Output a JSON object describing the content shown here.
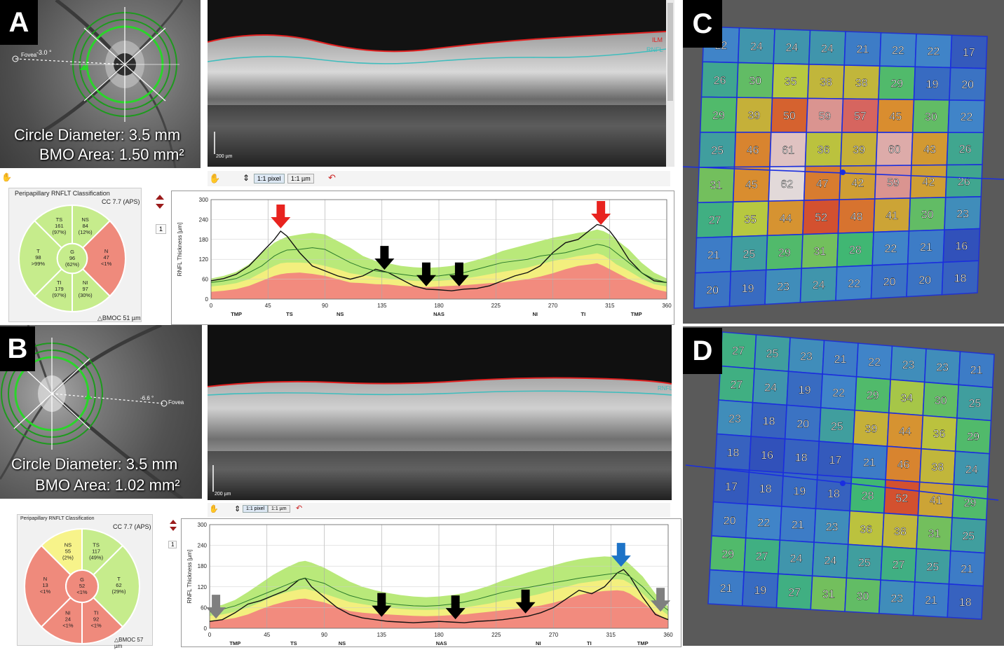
{
  "panels": {
    "A": {
      "label": "A",
      "fovea_label": "Fovea",
      "fovea_angle": "-3.0 °",
      "circle_diameter": "Circle Diameter: 3.5 mm",
      "bmo_area": "BMO Area: 1.50 mm²",
      "scale_bar": "200 µm",
      "layer_ilm": "ILM",
      "layer_rnfl": "RNFL",
      "toolbar_btn1": "1:1 pixel",
      "toolbar_btn2": "1:1 µm",
      "classification_title": "Peripapillary RNFLT Classification",
      "classification_cc": "CC 7.7 (APS)",
      "bmo_footer": "△BMOC 51 µm",
      "page_num": "1",
      "sectors": {
        "TS": {
          "name": "TS",
          "value": "161",
          "pct": "(97%)",
          "color": "#c6ec8c"
        },
        "NS": {
          "name": "NS",
          "value": "84",
          "pct": "(12%)",
          "color": "#c6ec8c"
        },
        "N": {
          "name": "N",
          "value": "47",
          "pct": "<1%",
          "color": "#ef8a7c"
        },
        "NI": {
          "name": "NI",
          "value": "97",
          "pct": "(30%)",
          "color": "#c6ec8c"
        },
        "TI": {
          "name": "TI",
          "value": "179",
          "pct": "(97%)",
          "color": "#c6ec8c"
        },
        "T": {
          "name": "T",
          "value": "98",
          "pct": ">99%",
          "color": "#c6ec8c"
        },
        "G": {
          "name": "G",
          "value": "96",
          "pct": "(62%)",
          "color": "#c6ec8c"
        }
      }
    },
    "B": {
      "label": "B",
      "fovea_label": "Fovea",
      "fovea_angle": "-6.6 °",
      "circle_diameter": "Circle Diameter: 3.5 mm",
      "bmo_area": "BMO Area: 1.02 mm²",
      "scale_bar": "200 µm",
      "layer_rnfl": "RNFL",
      "toolbar_btn1": "1:1 pixel",
      "toolbar_btn2": "1:1 µm",
      "classification_title": "Peripapillary RNFLT Classification",
      "classification_cc": "CC 7.7 (APS)",
      "bmo_footer": "△BMOC 57 µm",
      "page_num": "1",
      "sectors": {
        "NS": {
          "name": "NS",
          "value": "55",
          "pct": "(2%)",
          "color": "#f7f38a"
        },
        "TS": {
          "name": "TS",
          "value": "117",
          "pct": "(49%)",
          "color": "#c6ec8c"
        },
        "T": {
          "name": "T",
          "value": "62",
          "pct": "(29%)",
          "color": "#c6ec8c"
        },
        "TI": {
          "name": "TI",
          "value": "92",
          "pct": "<1%",
          "color": "#ef8a7c"
        },
        "NI": {
          "name": "NI",
          "value": "24",
          "pct": "<1%",
          "color": "#ef8a7c"
        },
        "N": {
          "name": "N",
          "value": "13",
          "pct": "<1%",
          "color": "#ef8a7c"
        },
        "G": {
          "name": "G",
          "value": "52",
          "pct": "<1%",
          "color": "#ef8a7c"
        }
      }
    },
    "C": {
      "label": "C"
    },
    "D": {
      "label": "D"
    }
  },
  "chart_data": [
    {
      "type": "line",
      "panel": "A",
      "ylabel": "RNFL Thickness [µm]",
      "xlim": [
        0,
        360
      ],
      "ylim": [
        0,
        300
      ],
      "x_ticks": [
        0,
        45,
        90,
        135,
        180,
        225,
        270,
        315,
        360
      ],
      "y_ticks": [
        0,
        60,
        120,
        180,
        240,
        300
      ],
      "sector_labels": [
        "TMP",
        "TS",
        "NS",
        "NAS",
        "NI",
        "TI",
        "TMP"
      ],
      "sector_label_x": [
        10,
        31,
        51,
        90,
        128,
        147,
        168
      ],
      "arrows": [
        {
          "angle": 55,
          "color": "#e8231f"
        },
        {
          "angle": 137,
          "color": "#000000"
        },
        {
          "angle": 170,
          "color": "#000000"
        },
        {
          "angle": 196,
          "color": "#000000"
        },
        {
          "angle": 308,
          "color": "#e8231f"
        }
      ],
      "x": [
        0,
        10,
        20,
        30,
        40,
        50,
        55,
        60,
        70,
        80,
        90,
        100,
        110,
        120,
        130,
        140,
        150,
        160,
        170,
        180,
        190,
        200,
        210,
        220,
        230,
        240,
        250,
        260,
        270,
        280,
        290,
        300,
        305,
        310,
        315,
        320,
        330,
        340,
        350,
        360
      ],
      "series": [
        {
          "name": "patient",
          "values": [
            55,
            62,
            75,
            100,
            140,
            180,
            205,
            190,
            140,
            100,
            85,
            70,
            60,
            70,
            90,
            80,
            60,
            40,
            30,
            28,
            25,
            30,
            32,
            40,
            55,
            70,
            80,
            100,
            140,
            170,
            180,
            210,
            225,
            220,
            205,
            180,
            120,
            80,
            55,
            50
          ]
        },
        {
          "name": "normal_mean",
          "values": [
            50,
            55,
            62,
            80,
            100,
            130,
            140,
            148,
            150,
            155,
            150,
            130,
            110,
            95,
            85,
            80,
            75,
            70,
            68,
            70,
            75,
            80,
            90,
            100,
            110,
            115,
            120,
            130,
            135,
            140,
            150,
            160,
            165,
            162,
            155,
            140,
            110,
            80,
            60,
            50
          ]
        }
      ],
      "bands": {
        "red_upper": [
          22,
          25,
          30,
          40,
          55,
          70,
          75,
          78,
          80,
          76,
          70,
          60,
          50,
          48,
          45,
          44,
          40,
          38,
          36,
          38,
          40,
          42,
          45,
          48,
          50,
          55,
          60,
          68,
          78,
          90,
          100,
          105,
          108,
          100,
          90,
          80,
          60,
          45,
          30,
          22
        ],
        "yellow_upper": [
          38,
          42,
          48,
          60,
          80,
          100,
          108,
          110,
          110,
          108,
          100,
          90,
          78,
          72,
          66,
          62,
          58,
          55,
          54,
          55,
          58,
          62,
          68,
          75,
          82,
          88,
          95,
          105,
          115,
          122,
          130,
          135,
          138,
          132,
          120,
          105,
          85,
          62,
          45,
          38
        ],
        "green_upper": [
          62,
          70,
          82,
          105,
          140,
          170,
          180,
          188,
          195,
          200,
          195,
          175,
          155,
          130,
          115,
          108,
          100,
          96,
          94,
          96,
          100,
          108,
          118,
          130,
          145,
          155,
          165,
          175,
          185,
          192,
          200,
          205,
          210,
          205,
          195,
          180,
          150,
          110,
          80,
          62
        ]
      }
    },
    {
      "type": "line",
      "panel": "B",
      "ylabel": "RNFL Thickness [µm]",
      "xlim": [
        0,
        360
      ],
      "ylim": [
        0,
        300
      ],
      "x_ticks": [
        0,
        45,
        90,
        135,
        180,
        225,
        270,
        315,
        360
      ],
      "y_ticks": [
        0,
        60,
        120,
        180,
        240,
        300
      ],
      "sector_labels": [
        "TMP",
        "TS",
        "NS",
        "NAS",
        "NI",
        "TI",
        "TMP"
      ],
      "sector_label_x": [
        10,
        33,
        52,
        91,
        129,
        149,
        170
      ],
      "arrows": [
        {
          "angle": 5,
          "color": "#7f7f7f"
        },
        {
          "angle": 135,
          "color": "#000000"
        },
        {
          "angle": 193,
          "color": "#000000"
        },
        {
          "angle": 248,
          "color": "#000000"
        },
        {
          "angle": 323,
          "color": "#1d73c7"
        },
        {
          "angle": 354,
          "color": "#7f7f7f"
        }
      ],
      "x": [
        0,
        10,
        20,
        30,
        40,
        50,
        60,
        70,
        75,
        80,
        90,
        100,
        110,
        120,
        130,
        140,
        150,
        160,
        170,
        180,
        190,
        200,
        210,
        220,
        230,
        240,
        250,
        260,
        270,
        280,
        290,
        300,
        310,
        320,
        325,
        330,
        340,
        350,
        360
      ],
      "series": [
        {
          "name": "patient",
          "values": [
            20,
            25,
            45,
            70,
            80,
            95,
            110,
            140,
            145,
            120,
            90,
            60,
            40,
            30,
            25,
            20,
            18,
            16,
            18,
            20,
            18,
            16,
            20,
            22,
            25,
            30,
            35,
            45,
            60,
            85,
            110,
            100,
            120,
            160,
            170,
            150,
            90,
            40,
            25
          ]
        },
        {
          "name": "normal_mean",
          "values": [
            48,
            55,
            65,
            80,
            95,
            110,
            125,
            140,
            145,
            140,
            130,
            110,
            95,
            85,
            78,
            72,
            68,
            65,
            64,
            66,
            70,
            76,
            84,
            94,
            104,
            112,
            118,
            125,
            132,
            138,
            145,
            150,
            155,
            160,
            158,
            150,
            120,
            80,
            52
          ]
        }
      ],
      "bands": {
        "red_upper": [
          20,
          24,
          30,
          40,
          55,
          68,
          78,
          85,
          86,
          82,
          75,
          62,
          50,
          45,
          42,
          40,
          38,
          36,
          35,
          36,
          38,
          40,
          44,
          48,
          52,
          56,
          60,
          66,
          74,
          84,
          96,
          104,
          108,
          110,
          108,
          100,
          75,
          45,
          22
        ],
        "yellow_upper": [
          36,
          40,
          48,
          60,
          75,
          92,
          104,
          112,
          114,
          110,
          100,
          88,
          76,
          70,
          64,
          60,
          56,
          54,
          53,
          54,
          56,
          60,
          66,
          72,
          80,
          86,
          92,
          100,
          110,
          120,
          130,
          135,
          140,
          142,
          140,
          130,
          100,
          65,
          38
        ],
        "green_upper": [
          60,
          68,
          82,
          105,
          130,
          155,
          175,
          192,
          195,
          190,
          175,
          155,
          135,
          120,
          110,
          102,
          96,
          92,
          90,
          92,
          96,
          102,
          112,
          124,
          138,
          150,
          162,
          172,
          182,
          192,
          200,
          205,
          208,
          206,
          200,
          185,
          150,
          100,
          62
        ]
      }
    },
    {
      "type": "heatmap",
      "panel": "C",
      "rows": 8,
      "cols": 8,
      "values": [
        [
          22,
          24,
          24,
          24,
          21,
          22,
          22,
          17
        ],
        [
          26,
          30,
          35,
          38,
          38,
          29,
          19,
          20
        ],
        [
          29,
          39,
          50,
          59,
          57,
          45,
          30,
          22
        ],
        [
          25,
          46,
          61,
          36,
          39,
          60,
          43,
          26
        ],
        [
          31,
          45,
          62,
          47,
          42,
          59,
          42,
          26
        ],
        [
          27,
          35,
          44,
          52,
          48,
          41,
          30,
          23
        ],
        [
          21,
          25,
          29,
          31,
          28,
          22,
          21,
          16
        ],
        [
          20,
          19,
          23,
          24,
          22,
          20,
          20,
          18
        ]
      ]
    },
    {
      "type": "heatmap",
      "panel": "D",
      "rows": 8,
      "cols": 8,
      "values": [
        [
          27,
          25,
          23,
          21,
          22,
          23,
          23,
          21
        ],
        [
          27,
          24,
          19,
          22,
          29,
          34,
          30,
          25
        ],
        [
          23,
          18,
          20,
          25,
          39,
          44,
          36,
          29
        ],
        [
          18,
          16,
          18,
          17,
          21,
          46,
          38,
          24
        ],
        [
          17,
          18,
          19,
          18,
          28,
          52,
          41,
          29
        ],
        [
          20,
          22,
          21,
          23,
          36,
          38,
          31,
          25
        ],
        [
          29,
          27,
          24,
          24,
          25,
          27,
          25,
          21
        ],
        [
          21,
          19,
          27,
          31,
          30,
          23,
          21,
          18
        ]
      ]
    }
  ]
}
